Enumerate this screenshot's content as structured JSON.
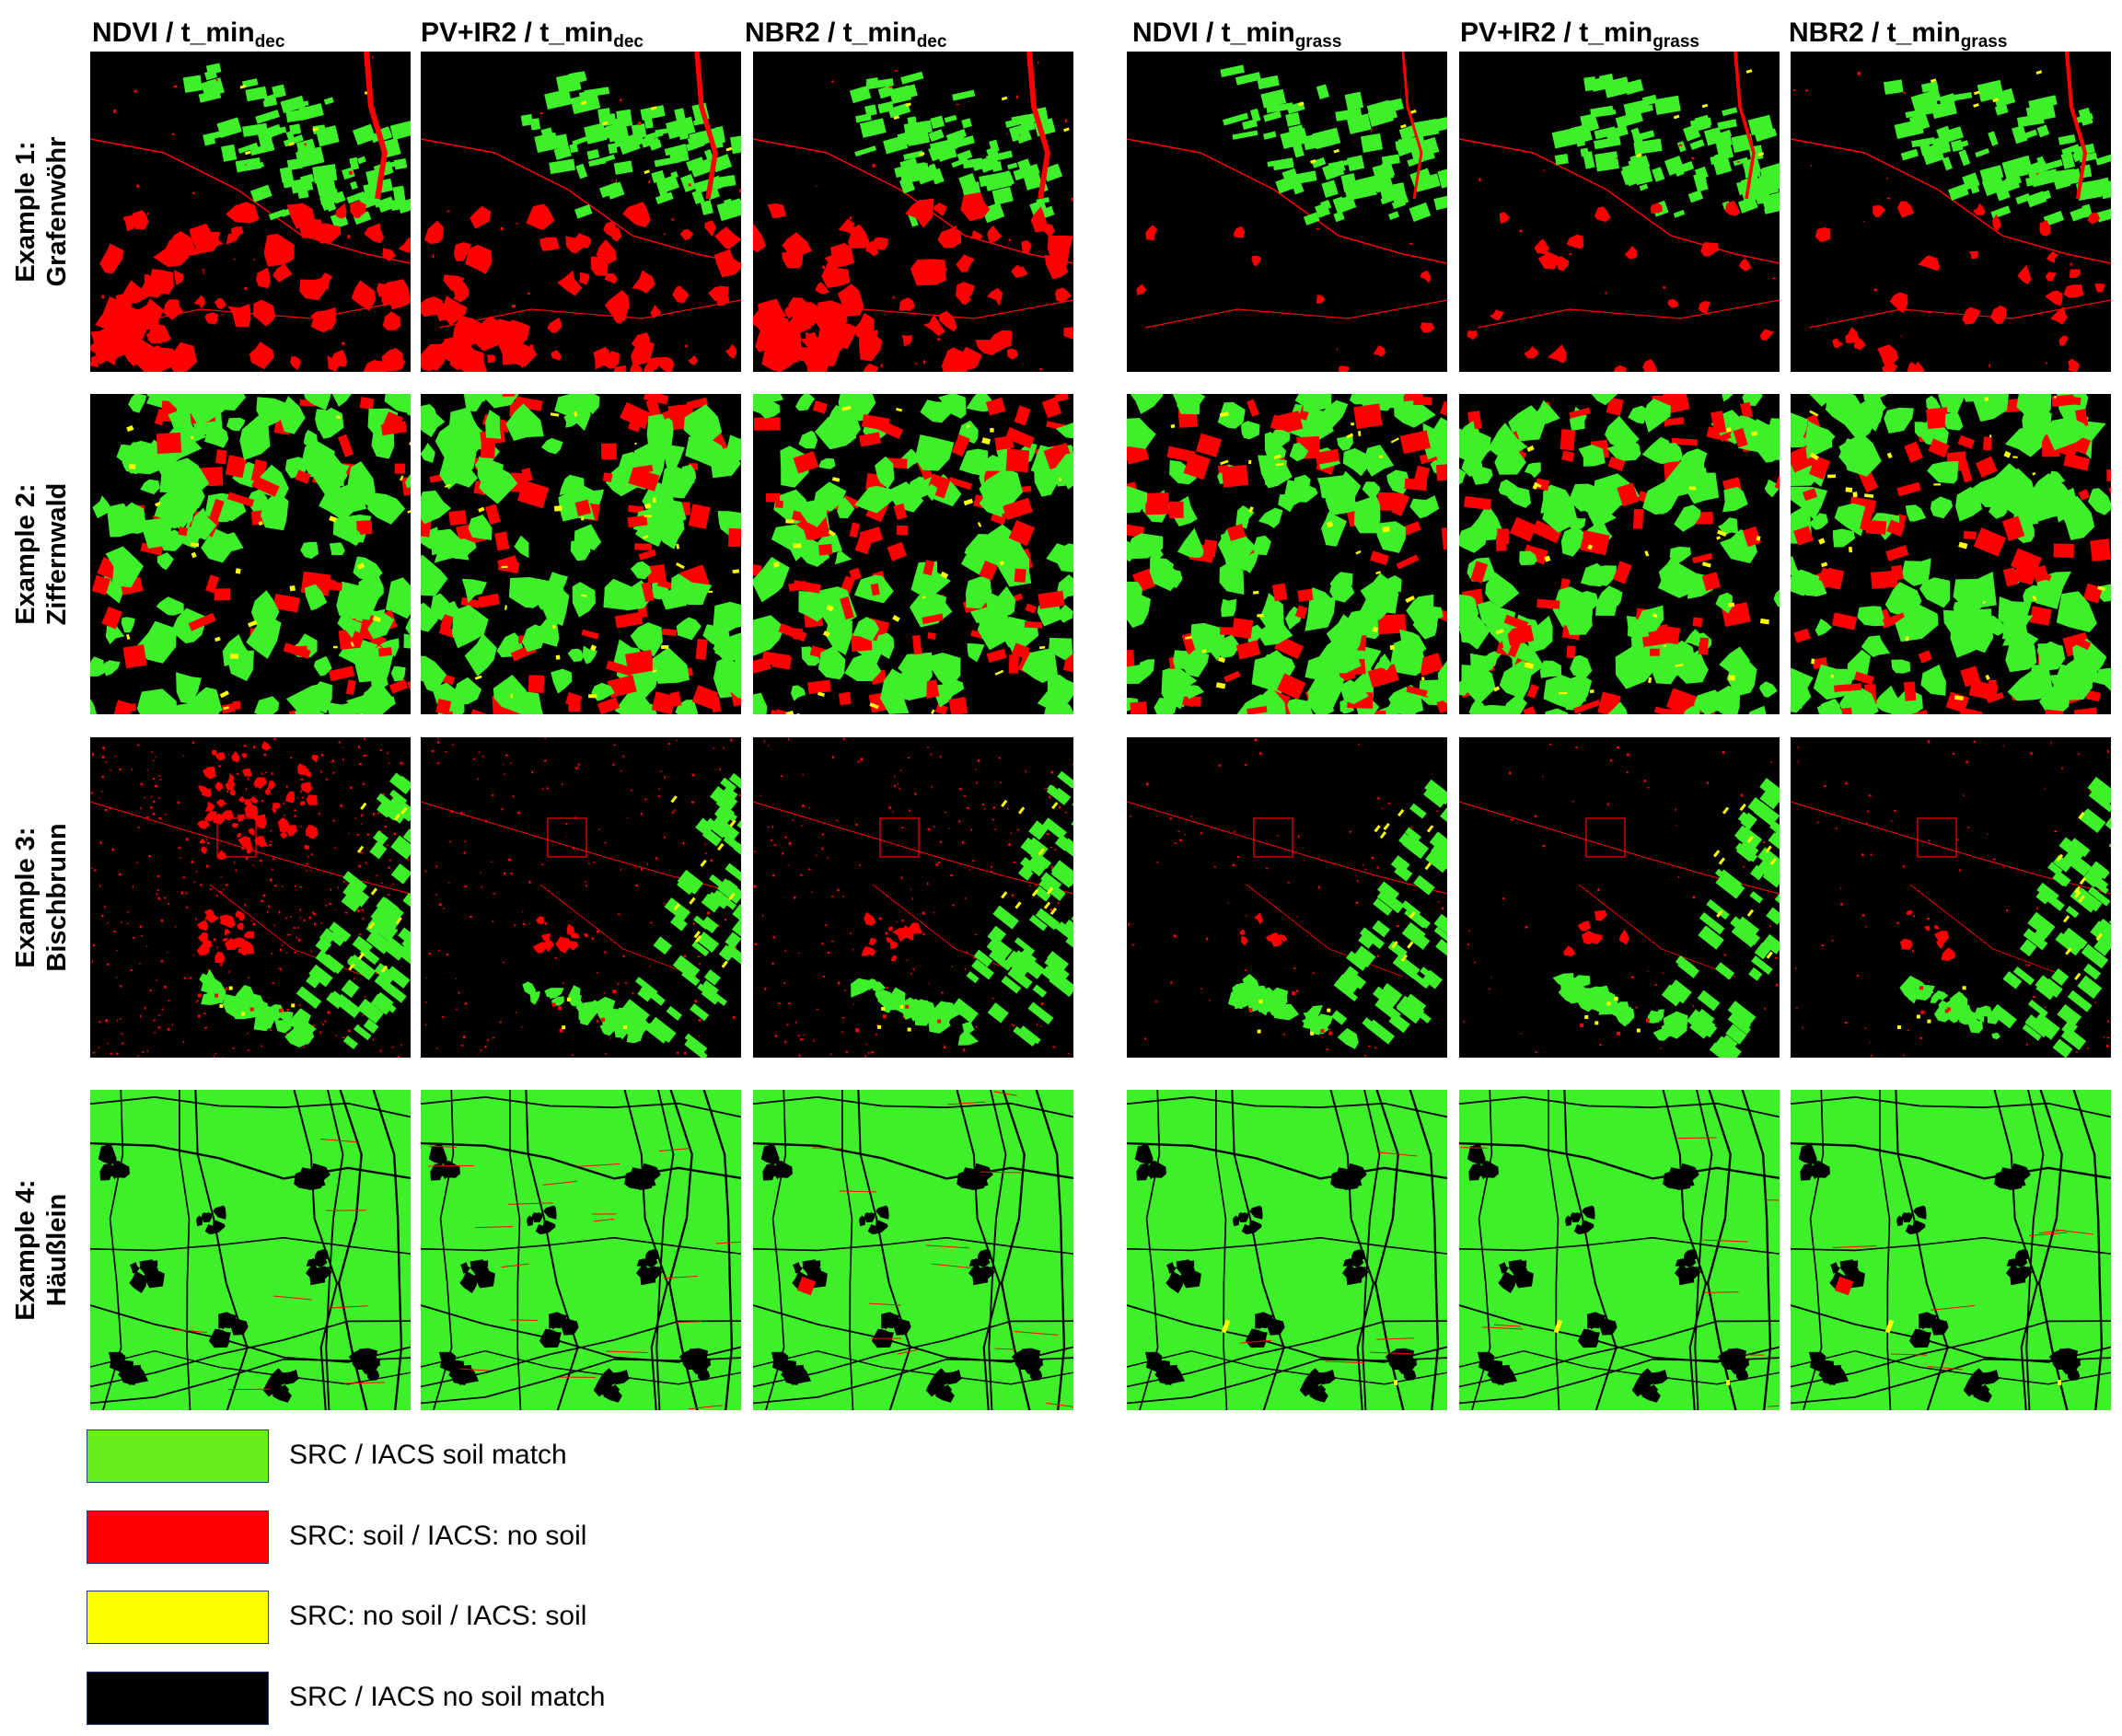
{
  "columns": [
    {
      "label": "NDVI / t_min",
      "sub": "dec"
    },
    {
      "label": "PV+IR2 / t_min",
      "sub": "dec"
    },
    {
      "label": "NBR2 / t_min",
      "sub": "dec"
    },
    {
      "label": "NDVI / t_min",
      "sub": "grass"
    },
    {
      "label": "PV+IR2 / t_min",
      "sub": "grass"
    },
    {
      "label": "NBR2 / t_min",
      "sub": "grass"
    }
  ],
  "rows": [
    {
      "line1": "Example 1:",
      "line2": "Grafenwöhr"
    },
    {
      "line1": "Example 2:",
      "line2": "Ziffernwald"
    },
    {
      "line1": "Example 3:",
      "line2": "Bischbrunn"
    },
    {
      "line1": "Example 4:",
      "line2": "Häußlein"
    }
  ],
  "legend": [
    {
      "label": "SRC / IACS soil match",
      "color": "#66ef1c"
    },
    {
      "label": "SRC: soil / IACS: no soil",
      "color": "#ff0000"
    },
    {
      "label": "SRC: no soil / IACS: soil",
      "color": "#ffff00"
    },
    {
      "label": "SRC / IACS no soil match",
      "color": "#000000"
    }
  ],
  "colors": {
    "match": "#3ef02a",
    "commission": "#ff0000",
    "omission": "#ffff00",
    "background": "#000000"
  }
}
